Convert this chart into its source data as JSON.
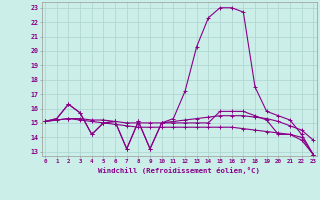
{
  "xlabel": "Windchill (Refroidissement éolien,°C)",
  "background_color": "#cceee8",
  "grid_color": "#aad4ce",
  "line_color": "#880088",
  "hours": [
    0,
    1,
    2,
    3,
    4,
    5,
    6,
    7,
    8,
    9,
    10,
    11,
    12,
    13,
    14,
    15,
    16,
    17,
    18,
    19,
    20,
    21,
    22,
    23
  ],
  "line1": [
    15.1,
    15.3,
    16.3,
    15.7,
    14.2,
    15.0,
    15.1,
    13.2,
    15.1,
    13.2,
    15.0,
    15.0,
    15.0,
    15.0,
    15.0,
    15.8,
    15.8,
    15.8,
    15.5,
    15.2,
    14.2,
    14.2,
    13.8,
    12.8
  ],
  "line2": [
    15.1,
    15.3,
    16.3,
    15.7,
    14.2,
    15.0,
    15.1,
    13.2,
    15.1,
    13.2,
    15.0,
    15.3,
    17.2,
    20.3,
    22.3,
    23.0,
    23.0,
    22.7,
    17.5,
    15.8,
    15.5,
    15.2,
    14.2,
    12.8
  ],
  "line3": [
    15.1,
    15.2,
    15.3,
    15.3,
    15.2,
    15.2,
    15.1,
    15.0,
    15.0,
    15.0,
    15.0,
    15.1,
    15.2,
    15.3,
    15.4,
    15.5,
    15.5,
    15.5,
    15.4,
    15.3,
    15.1,
    14.8,
    14.5,
    13.8
  ],
  "line4": [
    15.1,
    15.2,
    15.3,
    15.2,
    15.1,
    15.0,
    14.9,
    14.8,
    14.7,
    14.7,
    14.7,
    14.7,
    14.7,
    14.7,
    14.7,
    14.7,
    14.7,
    14.6,
    14.5,
    14.4,
    14.3,
    14.2,
    14.0,
    12.8
  ],
  "ylim": [
    12.7,
    23.4
  ],
  "yticks": [
    13,
    14,
    15,
    16,
    17,
    18,
    19,
    20,
    21,
    22,
    23
  ],
  "xlim": [
    -0.3,
    23.3
  ]
}
